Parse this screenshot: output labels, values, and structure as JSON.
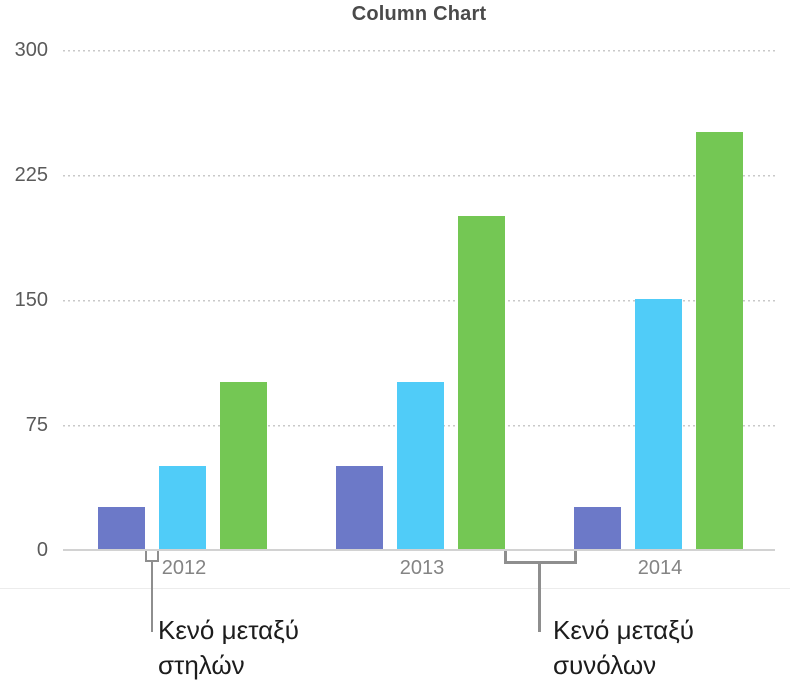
{
  "chart_data": {
    "type": "bar",
    "title": "Column Chart",
    "categories": [
      "2012",
      "2013",
      "2014"
    ],
    "series": [
      {
        "name": "purple",
        "color": "#6c79c8",
        "values": [
          25,
          50,
          25
        ]
      },
      {
        "name": "blue",
        "color": "#50ccf8",
        "values": [
          50,
          100,
          150
        ]
      },
      {
        "name": "green",
        "color": "#74c754",
        "values": [
          100,
          200,
          250
        ]
      }
    ],
    "ylim": [
      0,
      300
    ],
    "yticks": [
      "0",
      "75",
      "150",
      "225",
      "300"
    ],
    "xlabel": "",
    "ylabel": "",
    "grid": "horizontal-dotted",
    "legend": "none",
    "axis_line_color": "#d2d2d2",
    "gridline_color": "#c9c9c9"
  },
  "annotations": [
    {
      "text": "Κενό μεταξύ στηλών",
      "lines": [
        "Κενό μεταξύ",
        "στηλών"
      ]
    },
    {
      "text": "Κενό μεταξύ συνόλων",
      "lines": [
        "Κενό μεταξύ",
        "συνόλων"
      ]
    }
  ]
}
